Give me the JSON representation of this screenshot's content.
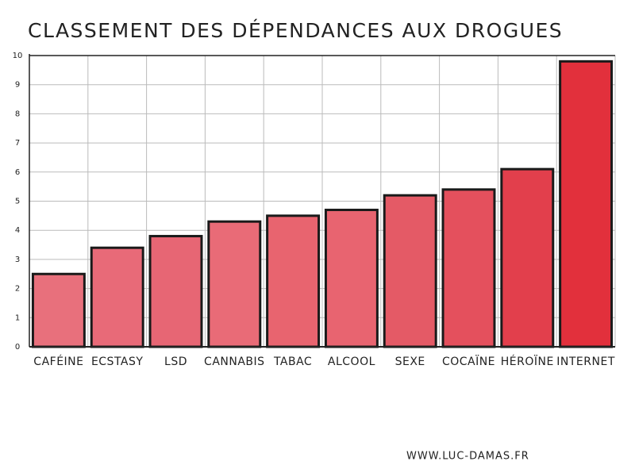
{
  "chart_data": {
    "type": "bar",
    "title": "CLASSEMENT DES DÉPENDANCES AUX DROGUES",
    "categories": [
      "CAFÉINE",
      "ECSTASY",
      "LSD",
      "CANNABIS",
      "TABAC",
      "ALCOOL",
      "SEXE",
      "COCAÏNE",
      "HÉROÏNE",
      "INTERNET"
    ],
    "values": [
      2.5,
      3.4,
      3.8,
      4.3,
      4.5,
      4.7,
      5.2,
      5.4,
      6.1,
      9.8
    ],
    "colors": [
      "#e8707c",
      "#e86a78",
      "#e76674",
      "#e96b77",
      "#e8646f",
      "#e86470",
      "#e45a66",
      "#e4505d",
      "#e23f4c",
      "#e2303c"
    ],
    "ylim": [
      0,
      10
    ],
    "yticks": [
      0,
      1,
      2,
      3,
      4,
      5,
      6,
      7,
      8,
      9,
      10
    ],
    "grid": true,
    "footer": "WWW.LUC-DAMAS.FR"
  }
}
